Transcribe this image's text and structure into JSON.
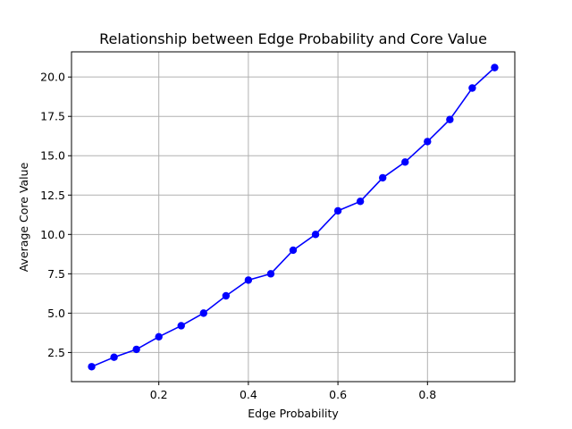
{
  "chart_data": {
    "type": "line",
    "title": "Relationship between Edge Probability and Core Value",
    "xlabel": "Edge Probability",
    "ylabel": "Average Core Value",
    "xlim": [
      0.005,
      0.995
    ],
    "ylim": [
      0.65,
      21.6
    ],
    "xticks": [
      0.2,
      0.4,
      0.6,
      0.8
    ],
    "xtick_labels": [
      "0.2",
      "0.4",
      "0.6",
      "0.8"
    ],
    "yticks": [
      2.5,
      5.0,
      7.5,
      10.0,
      12.5,
      15.0,
      17.5,
      20.0
    ],
    "ytick_labels": [
      "2.5",
      "5.0",
      "7.5",
      "10.0",
      "12.5",
      "15.0",
      "17.5",
      "20.0"
    ],
    "grid": true,
    "series": [
      {
        "color": "#0000ff",
        "marker": "circle",
        "x": [
          0.05,
          0.1,
          0.15,
          0.2,
          0.25,
          0.3,
          0.35,
          0.4,
          0.45,
          0.5,
          0.55,
          0.6,
          0.65,
          0.7,
          0.75,
          0.8,
          0.85,
          0.9,
          0.95
        ],
        "y": [
          1.6,
          2.2,
          2.7,
          3.5,
          4.2,
          5.0,
          6.1,
          7.1,
          7.5,
          9.0,
          10.0,
          11.5,
          12.1,
          13.6,
          14.6,
          15.9,
          17.3,
          19.3,
          20.6
        ]
      }
    ]
  }
}
